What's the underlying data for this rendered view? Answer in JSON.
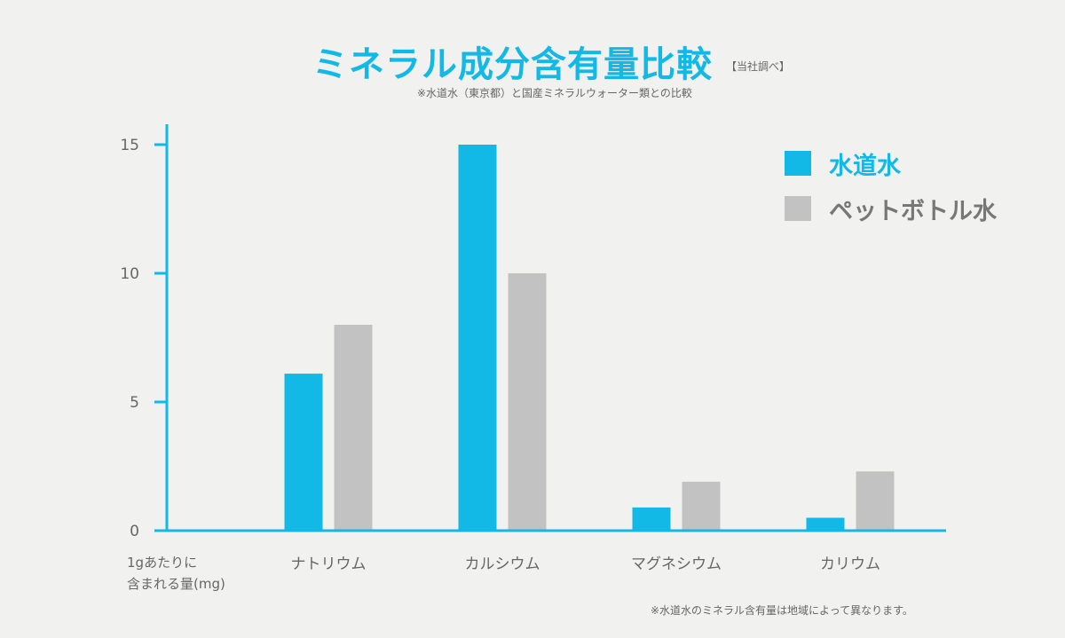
{
  "chart_data": {
    "type": "bar",
    "title": "ミネラル成分含有量比較",
    "source_note": "【当社調べ】",
    "subtitle": "※水道水（東京都）と国産ミネラルウォーター類との比較",
    "ylabel": "1gあたりに\n含まれる量(mg)",
    "ylabel_lines": [
      "1gあたりに",
      "含まれる量(mg)"
    ],
    "xlabel": "",
    "ylim": [
      0,
      15
    ],
    "yticks": [
      0,
      5,
      10,
      15
    ],
    "categories": [
      "ナトリウム",
      "カルシウム",
      "マグネシウム",
      "カリウム"
    ],
    "series": [
      {
        "name": "水道水",
        "color": "#13b9e6",
        "values": [
          6.1,
          15,
          0.9,
          0.5
        ]
      },
      {
        "name": "ペットボトル水",
        "color": "#c2c2c2",
        "values": [
          8,
          10,
          1.9,
          2.3
        ]
      }
    ],
    "legend_position": "top-right",
    "grid": false,
    "footnote": "※水道水のミネラル含有量は地域によって異なります。"
  }
}
